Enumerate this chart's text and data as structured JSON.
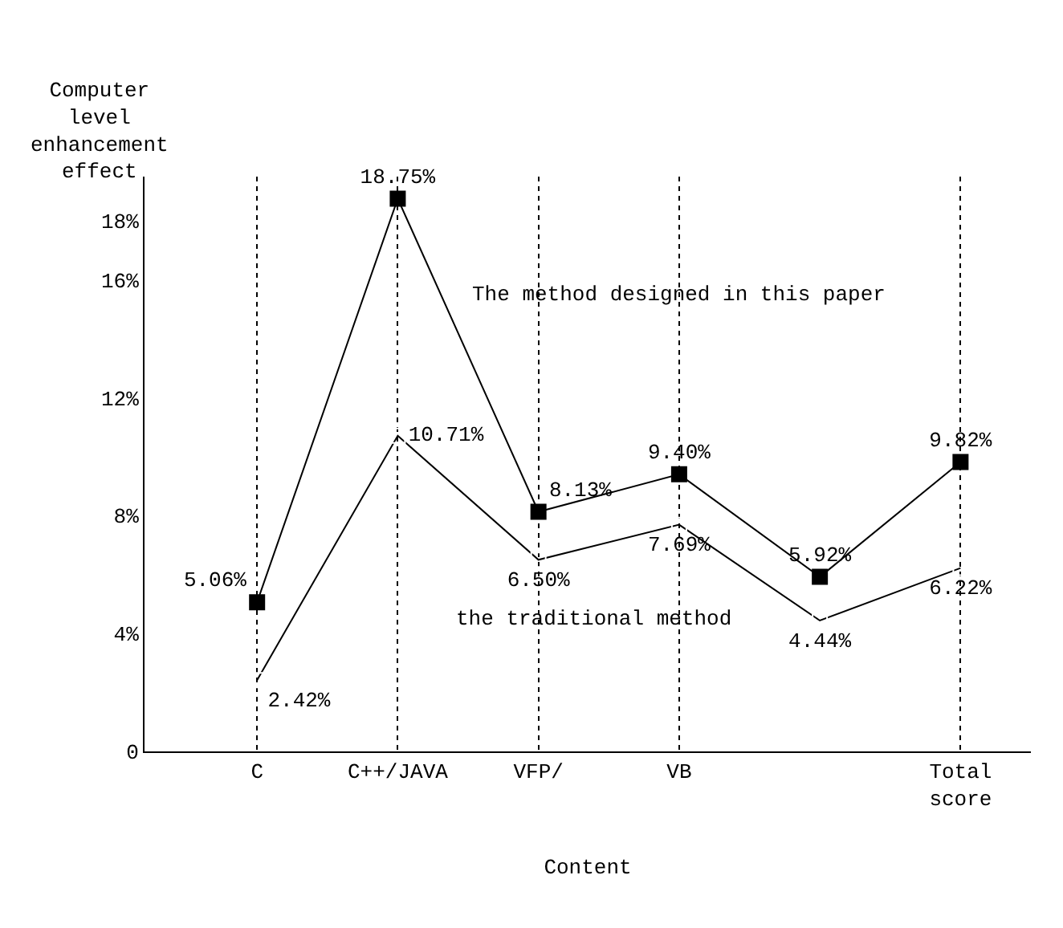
{
  "chart_data": {
    "type": "line",
    "xlabel": "Content",
    "ylabel": "Computer\nlevel\nenhancement\neffect",
    "categories": [
      "C",
      "C++/JAVA",
      "VFP/",
      "VB",
      null,
      "Total\nscore"
    ],
    "series": [
      {
        "name": "The method designed in this paper",
        "color": "#000000",
        "values": [
          5.06,
          18.75,
          8.13,
          9.4,
          5.92,
          9.82
        ],
        "value_labels": [
          "5.06%",
          "18.75%",
          "8.13%",
          "9.40%",
          "5.92%",
          "9.82%"
        ]
      },
      {
        "name": "the traditional method",
        "color": "#000000",
        "values": [
          2.42,
          10.71,
          6.5,
          7.69,
          4.44,
          6.22
        ],
        "value_labels": [
          "2.42%",
          "10.71%",
          "6.50%",
          "7.69%",
          "4.44%",
          "6.22%"
        ]
      }
    ],
    "ylim": [
      0,
      19.5
    ],
    "yticks": [
      0,
      {
        "value": 4,
        "label": "4%"
      },
      {
        "value": 8,
        "label": "8%"
      },
      {
        "value": 12,
        "label": "12%"
      },
      {
        "value": 16,
        "label": "16%"
      },
      {
        "value": 18,
        "label": "18%"
      }
    ],
    "grid": "x",
    "marker": "square",
    "line_style": "solid",
    "legend": false
  }
}
